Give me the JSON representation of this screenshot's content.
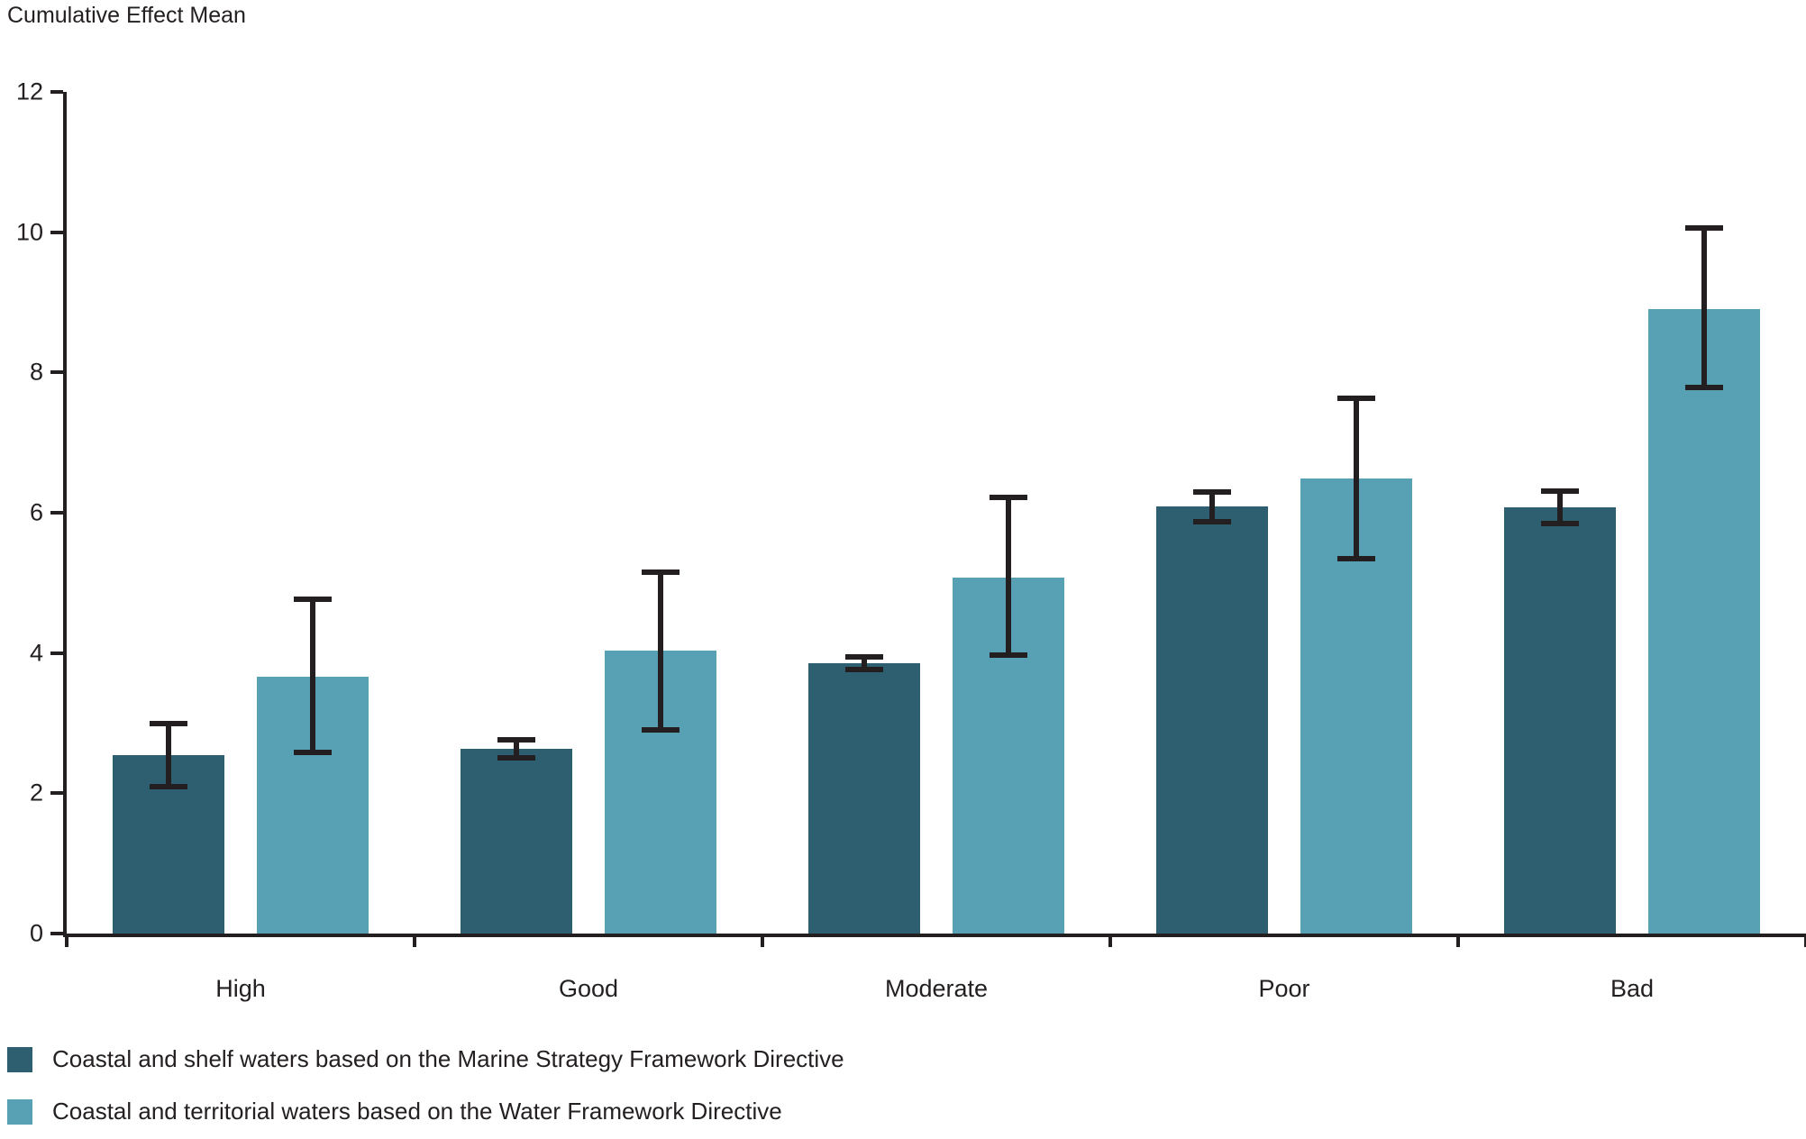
{
  "title": "Cumulative Effect Mean",
  "chart_data": {
    "type": "bar",
    "categories": [
      "High",
      "Good",
      "Moderate",
      "Poor",
      "Bad"
    ],
    "series": [
      {
        "name": "Coastal and shelf waters based on the Marine Strategy Framework Directive",
        "color": "#2d5f70",
        "values": [
          2.55,
          2.63,
          3.86,
          6.09,
          6.08
        ],
        "error_low": [
          2.1,
          2.5,
          3.77,
          5.87,
          5.85
        ],
        "error_high": [
          3.0,
          2.76,
          3.94,
          6.29,
          6.31
        ]
      },
      {
        "name": "Coastal and territorial waters based on the Water Framework Directive",
        "color": "#58a0b4",
        "values": [
          3.66,
          4.03,
          5.08,
          6.49,
          8.91
        ],
        "error_low": [
          2.58,
          2.9,
          3.97,
          5.35,
          7.79
        ],
        "error_high": [
          4.77,
          5.15,
          6.22,
          7.63,
          10.06
        ]
      }
    ],
    "ylabel": "Cumulative Effect Mean",
    "xlabel": "",
    "ylim": [
      0,
      12
    ],
    "yticks": [
      0,
      2,
      4,
      6,
      8,
      10,
      12
    ],
    "grid": false,
    "error_bars": true,
    "legend_position": "bottom-left",
    "axis_color": "#231f20",
    "text_color": "#242021"
  }
}
